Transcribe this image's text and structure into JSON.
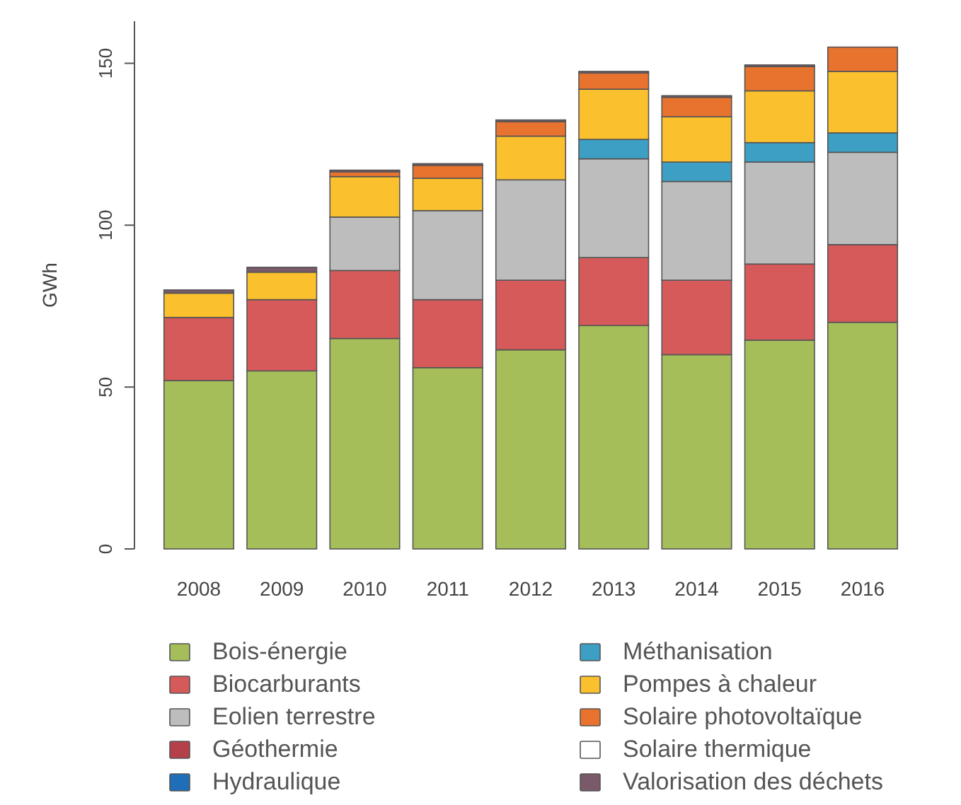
{
  "chart_data": {
    "type": "bar",
    "stacked": true,
    "ylabel": "GWh",
    "ylim": [
      0,
      163
    ],
    "yticks": [
      0,
      50,
      100,
      150
    ],
    "grid": false,
    "legend": "bottom",
    "categories": [
      "2008",
      "2009",
      "2010",
      "2011",
      "2012",
      "2013",
      "2014",
      "2015",
      "2016"
    ],
    "series": [
      {
        "name": "Bois-énergie",
        "color": "#a5be5a",
        "values": [
          52,
          55,
          65,
          56,
          61.5,
          69,
          60,
          64.5,
          70
        ]
      },
      {
        "name": "Biocarburants",
        "color": "#d65a5a",
        "values": [
          19.5,
          22,
          21,
          21,
          21.5,
          21,
          23,
          23.5,
          24
        ]
      },
      {
        "name": "Eolien terrestre",
        "color": "#bdbdbd",
        "values": [
          0,
          0,
          16.5,
          27.5,
          31,
          30.5,
          30.5,
          31.5,
          28.5
        ]
      },
      {
        "name": "Géothermie",
        "color": "#b5404a",
        "values": [
          0,
          0,
          0,
          0,
          0,
          0,
          0,
          0,
          0
        ]
      },
      {
        "name": "Hydraulique",
        "color": "#1f6fb8",
        "values": [
          0,
          0,
          0,
          0,
          0,
          0,
          0,
          0,
          0
        ]
      },
      {
        "name": "Méthanisation",
        "color": "#3d9fc4",
        "values": [
          0,
          0,
          0,
          0,
          0,
          6,
          6,
          6,
          6
        ]
      },
      {
        "name": "Pompes à chaleur",
        "color": "#fbc02d",
        "values": [
          7.5,
          8.5,
          12.5,
          10,
          13.5,
          15.5,
          14,
          16,
          19
        ]
      },
      {
        "name": "Solaire photovoltaïque",
        "color": "#e8732f",
        "values": [
          0,
          0,
          1.5,
          4,
          4.5,
          5,
          6,
          7.5,
          7.5
        ]
      },
      {
        "name": "Solaire thermique",
        "color": "#ffffff",
        "values": [
          0,
          0,
          0,
          0,
          0,
          0,
          0,
          0,
          0
        ]
      },
      {
        "name": "Valorisation des déchets",
        "color": "#7a5a6a",
        "values": [
          1,
          1.5,
          0.5,
          0.5,
          0.5,
          0.5,
          0.5,
          0.5,
          0
        ]
      }
    ]
  }
}
